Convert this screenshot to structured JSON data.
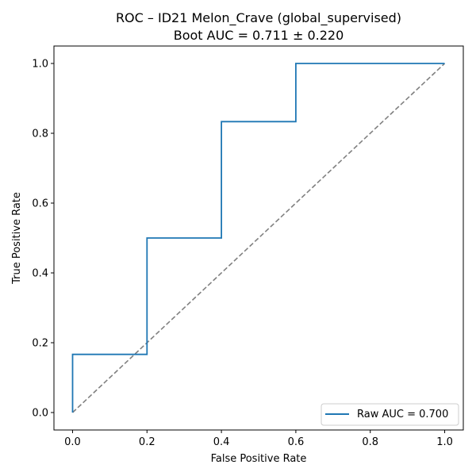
{
  "chart_data": {
    "type": "line",
    "title": "ROC – ID21 Melon_Crave (global_supervised)",
    "subtitle": "Boot AUC = 0.711 ± 0.220",
    "xlabel": "False Positive Rate",
    "ylabel": "True Positive Rate",
    "xlim": [
      -0.05,
      1.05
    ],
    "ylim": [
      -0.05,
      1.05
    ],
    "xticks": [
      0.0,
      0.2,
      0.4,
      0.6,
      0.8,
      1.0
    ],
    "yticks": [
      0.0,
      0.2,
      0.4,
      0.6,
      0.8,
      1.0
    ],
    "xtick_labels": [
      "0.0",
      "0.2",
      "0.4",
      "0.6",
      "0.8",
      "1.0"
    ],
    "ytick_labels": [
      "0.0",
      "0.2",
      "0.4",
      "0.6",
      "0.8",
      "1.0"
    ],
    "grid": false,
    "legend_position": "lower-right",
    "series": [
      {
        "name": "Raw AUC = 0.700",
        "color": "#1f77b4",
        "style": "solid",
        "x": [
          0.0,
          0.0,
          0.2,
          0.2,
          0.4,
          0.4,
          0.6,
          0.6,
          1.0
        ],
        "y": [
          0.0,
          0.1667,
          0.1667,
          0.5,
          0.5,
          0.8333,
          0.8333,
          1.0,
          1.0
        ]
      },
      {
        "color": "#808080",
        "style": "dashed",
        "x": [
          0.0,
          1.0
        ],
        "y": [
          0.0,
          1.0
        ]
      }
    ]
  }
}
